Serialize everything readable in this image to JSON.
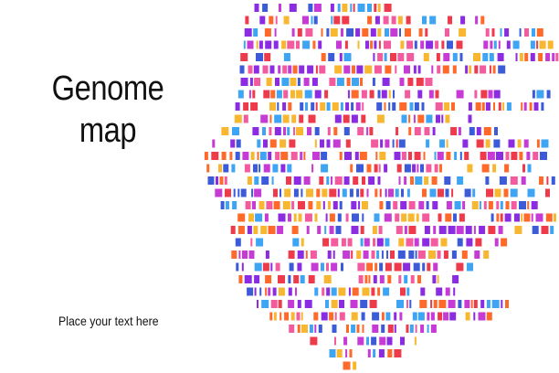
{
  "title": {
    "line1": "Genome",
    "line2": "map"
  },
  "placeholder_text": "Place your text here",
  "palette": {
    "purple": "#8b2be2",
    "magenta": "#c63bd6",
    "blue": "#3b5bd9",
    "sky": "#3da5f4",
    "orange": "#ff6a2b",
    "red": "#ee3b4b",
    "yellow": "#f7b731",
    "pink": "#f25c9e"
  }
}
